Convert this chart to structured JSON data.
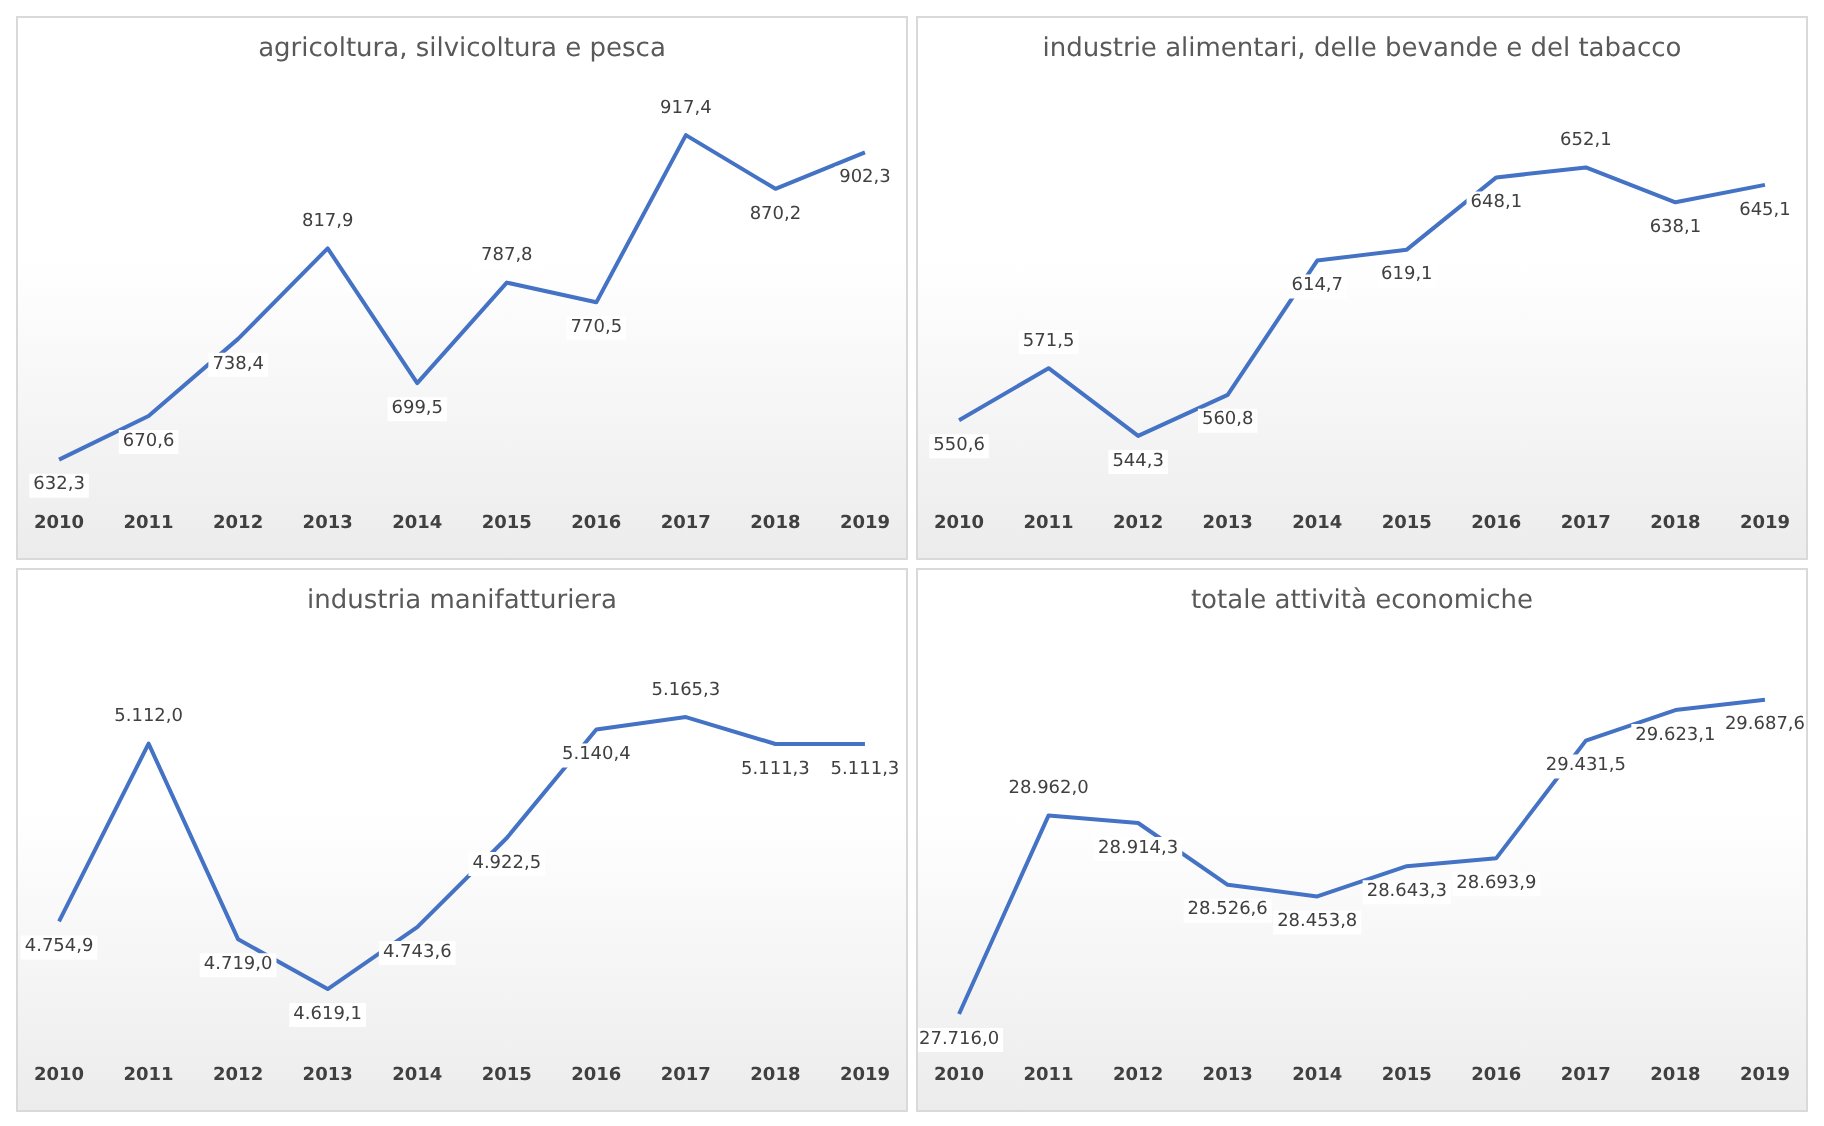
{
  "chart_data": [
    {
      "type": "line",
      "title": "agricoltura, silvicoltura e pesca",
      "categories": [
        "2010",
        "2011",
        "2012",
        "2013",
        "2014",
        "2015",
        "2016",
        "2017",
        "2018",
        "2019"
      ],
      "series": [
        {
          "color": "#4472c4",
          "values": [
            632.3,
            670.6,
            738.4,
            817.9,
            699.5,
            787.8,
            770.5,
            917.4,
            870.2,
            902.3
          ],
          "value_labels": [
            "632,3",
            "670,6",
            "738,4",
            "817,9",
            "699,5",
            "787,8",
            "770,5",
            "917,4",
            "870,2",
            "902,3"
          ]
        }
      ],
      "grid": false,
      "legend": false,
      "tick_labels": "x",
      "marker": "none"
    },
    {
      "type": "line",
      "title": "industrie alimentari, delle bevande e del tabacco",
      "categories": [
        "2010",
        "2011",
        "2012",
        "2013",
        "2014",
        "2015",
        "2016",
        "2017",
        "2018",
        "2019"
      ],
      "series": [
        {
          "color": "#4472c4",
          "values": [
            550.6,
            571.5,
            544.3,
            560.8,
            614.7,
            619.1,
            648.1,
            652.1,
            638.1,
            645.1
          ],
          "value_labels": [
            "550,6",
            "571,5",
            "544,3",
            "560,8",
            "614,7",
            "619,1",
            "648,1",
            "652,1",
            "638,1",
            "645,1"
          ]
        }
      ],
      "grid": false,
      "legend": false,
      "tick_labels": "x",
      "marker": "none"
    },
    {
      "type": "line",
      "title": "industria manifatturiera",
      "categories": [
        "2010",
        "2011",
        "2012",
        "2013",
        "2014",
        "2015",
        "2016",
        "2017",
        "2018",
        "2019"
      ],
      "series": [
        {
          "color": "#4472c4",
          "values": [
            4754.9,
            5112.0,
            4719.0,
            4619.1,
            4743.6,
            4922.5,
            5140.4,
            5165.3,
            5111.3,
            5111.3
          ],
          "value_labels": [
            "4.754,9",
            "5.112,0",
            "4.719,0",
            "4.619,1",
            "4.743,6",
            "4.922,5",
            "5.140,4",
            "5.165,3",
            "5.111,3",
            "5.111,3"
          ]
        }
      ],
      "grid": false,
      "legend": false,
      "tick_labels": "x",
      "marker": "none"
    },
    {
      "type": "line",
      "title": "totale attività economiche",
      "categories": [
        "2010",
        "2011",
        "2012",
        "2013",
        "2014",
        "2015",
        "2016",
        "2017",
        "2018",
        "2019"
      ],
      "series": [
        {
          "color": "#4472c4",
          "values": [
            27716.0,
            28962.0,
            28914.3,
            28526.6,
            28453.8,
            28643.3,
            28693.9,
            29431.5,
            29623.1,
            29687.6
          ],
          "value_labels": [
            "27.716,0",
            "28.962,0",
            "28.914,3",
            "28.526,6",
            "28.453,8",
            "28.643,3",
            "28.693,9",
            "29.431,5",
            "29.623,1",
            "29.687,6"
          ]
        }
      ],
      "grid": false,
      "legend": false,
      "tick_labels": "x",
      "marker": "none"
    }
  ]
}
